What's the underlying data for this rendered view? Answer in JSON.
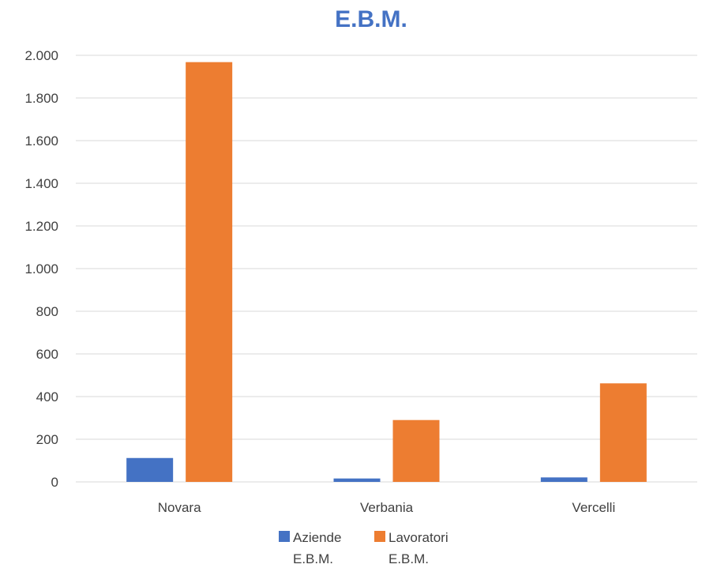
{
  "chart_data": {
    "type": "bar",
    "title": "E.B.M.",
    "categories": [
      "Novara",
      "Verbania",
      "Vercelli"
    ],
    "series": [
      {
        "name": "Aziende E.B.M.",
        "name_lines": [
          "Aziende",
          "E.B.M."
        ],
        "color": "#4472C4",
        "values": [
          112,
          16,
          21
        ]
      },
      {
        "name": "Lavoratori E.B.M.",
        "name_lines": [
          "Lavoratori",
          "E.B.M."
        ],
        "color": "#ED7D31",
        "values": [
          1968,
          290,
          462
        ]
      }
    ],
    "ylim": [
      0,
      2000
    ],
    "yticks": [
      0,
      200,
      400,
      600,
      800,
      1000,
      1200,
      1400,
      1600,
      1800,
      2000
    ],
    "ytick_labels": [
      "0",
      "200",
      "400",
      "600",
      "800",
      "1.000",
      "1.200",
      "1.400",
      "1.600",
      "1.800",
      "2.000"
    ],
    "grid": true,
    "legend": "bottom",
    "xlabel": "",
    "ylabel": ""
  }
}
